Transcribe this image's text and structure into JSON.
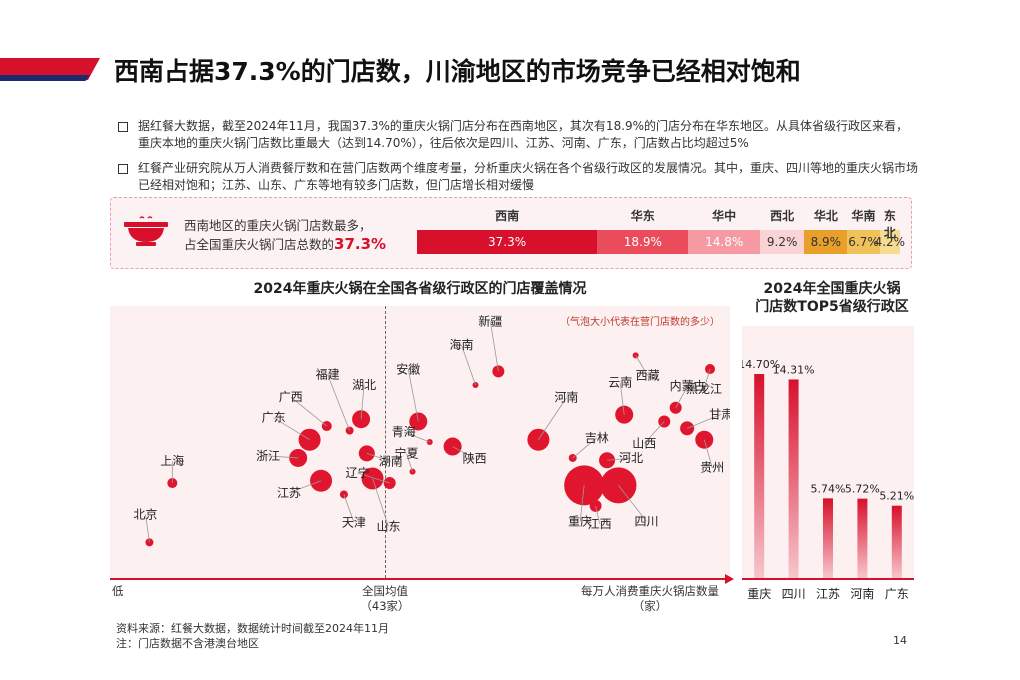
{
  "title": "西南占据37.3%的门店数，川渝地区的市场竞争已经相对饱和",
  "bullets": [
    "据红餐大数据，截至2024年11月，我国37.3%的重庆火锅门店分布在西南地区，其次有18.9%的门店分布在华东地区。从具体省级行政区来看，重庆本地的重庆火锅门店数比重最大（达到14.70%），往后依次是四川、江苏、河南、广东，门店数占比均超过5%",
    "红餐产业研究院从万人消费餐厅数和在营门店数两个维度考量，分析重庆火锅在各个省级行政区的发展情况。其中，重庆、四川等地的重庆火锅市场已经相对饱和；江苏、山东、广东等地有较多门店数，但门店增长相对缓慢"
  ],
  "summary": {
    "line1": "西南地区的重庆火锅门店数最多，",
    "line2": "占全国重庆火锅门店总数的",
    "highlight": "37.3%",
    "icon": "hotpot-bowl-icon"
  },
  "region_bar": [
    {
      "name": "西南",
      "label": "37.3%",
      "value": 37.3,
      "color": "#d7102c"
    },
    {
      "name": "华东",
      "label": "18.9%",
      "value": 18.9,
      "color": "#ea4c5c"
    },
    {
      "name": "华中",
      "label": "14.8%",
      "value": 14.8,
      "color": "#f59aa3"
    },
    {
      "name": "西北",
      "label": "9.2%",
      "value": 9.2,
      "color": "#f9d3d6"
    },
    {
      "name": "华北",
      "label": "8.9%",
      "value": 8.9,
      "color": "#e8a02a"
    },
    {
      "name": "华南",
      "label": "6.7%",
      "value": 6.7,
      "color": "#f1c15a"
    },
    {
      "name": "东北",
      "label": "4.2%",
      "value": 4.2,
      "color": "#f6dc90"
    }
  ],
  "bubble_chart": {
    "title": "2024年重庆火锅在全国各省级行政区的门店覆盖情况",
    "note": "（气泡大小代表在营门店数的多少）",
    "x_low": "低",
    "x_mid": "全国均值",
    "x_mid_sub": "（43家）",
    "x_axis": "每万人消费重庆火锅店数量",
    "x_axis_sub": "（家）"
  },
  "top5": {
    "title_line1": "2024年全国重庆火锅",
    "title_line2": "门店数TOP5省级行政区"
  },
  "chart_data": [
    {
      "type": "bar",
      "title": "2024年全国重庆火锅门店数TOP5省级行政区",
      "categories": [
        "重庆",
        "四川",
        "江苏",
        "河南",
        "广东"
      ],
      "values": [
        14.7,
        14.31,
        5.74,
        5.72,
        5.21
      ],
      "labels": [
        "14.70%",
        "14.31%",
        "5.74%",
        "5.72%",
        "5.21%"
      ],
      "ylim": [
        0,
        16
      ]
    },
    {
      "type": "scatter",
      "title": "2024年重庆火锅在全国各省级行政区的门店覆盖情况",
      "xlabel": "每万人消费重庆火锅店数量（家）",
      "reference_x": 43,
      "points": [
        {
          "name": "北京",
          "x": 2,
          "y": 6,
          "size": 4
        },
        {
          "name": "上海",
          "x": 6,
          "y": 32,
          "size": 5
        },
        {
          "name": "江苏",
          "x": 32,
          "y": 33,
          "size": 11
        },
        {
          "name": "天津",
          "x": 36,
          "y": 27,
          "size": 4
        },
        {
          "name": "浙江",
          "x": 28,
          "y": 43,
          "size": 9
        },
        {
          "name": "广东",
          "x": 30,
          "y": 51,
          "size": 11
        },
        {
          "name": "广西",
          "x": 33,
          "y": 57,
          "size": 5
        },
        {
          "name": "福建",
          "x": 37,
          "y": 55,
          "size": 4
        },
        {
          "name": "湖北",
          "x": 39,
          "y": 60,
          "size": 9
        },
        {
          "name": "湖南",
          "x": 40,
          "y": 45,
          "size": 8
        },
        {
          "name": "山东",
          "x": 41,
          "y": 34,
          "size": 11
        },
        {
          "name": "辽宁",
          "x": 44,
          "y": 32,
          "size": 6
        },
        {
          "name": "宁夏",
          "x": 48,
          "y": 37,
          "size": 3
        },
        {
          "name": "安徽",
          "x": 49,
          "y": 59,
          "size": 9
        },
        {
          "name": "青海",
          "x": 51,
          "y": 50,
          "size": 3
        },
        {
          "name": "陕西",
          "x": 55,
          "y": 48,
          "size": 9
        },
        {
          "name": "海南",
          "x": 59,
          "y": 75,
          "size": 3
        },
        {
          "name": "新疆",
          "x": 63,
          "y": 81,
          "size": 6
        },
        {
          "name": "河南",
          "x": 70,
          "y": 51,
          "size": 11
        },
        {
          "name": "吉林",
          "x": 76,
          "y": 43,
          "size": 4
        },
        {
          "name": "重庆",
          "x": 78,
          "y": 31,
          "size": 20
        },
        {
          "name": "江西",
          "x": 80,
          "y": 22,
          "size": 6
        },
        {
          "name": "河北",
          "x": 82,
          "y": 42,
          "size": 8
        },
        {
          "name": "四川",
          "x": 84,
          "y": 31,
          "size": 18
        },
        {
          "name": "云南",
          "x": 85,
          "y": 62,
          "size": 9
        },
        {
          "name": "西藏",
          "x": 87,
          "y": 88,
          "size": 3
        },
        {
          "name": "山西",
          "x": 92,
          "y": 59,
          "size": 6
        },
        {
          "name": "内蒙古",
          "x": 94,
          "y": 65,
          "size": 6
        },
        {
          "name": "甘肃",
          "x": 96,
          "y": 56,
          "size": 7
        },
        {
          "name": "贵州",
          "x": 99,
          "y": 51,
          "size": 9
        },
        {
          "name": "黑龙江",
          "x": 100,
          "y": 82,
          "size": 5
        }
      ]
    }
  ],
  "footer": {
    "source": "资料来源：红餐大数据，数据统计时间截至2024年11月",
    "note": "注：门店数据不含港澳台地区",
    "page": "14"
  }
}
